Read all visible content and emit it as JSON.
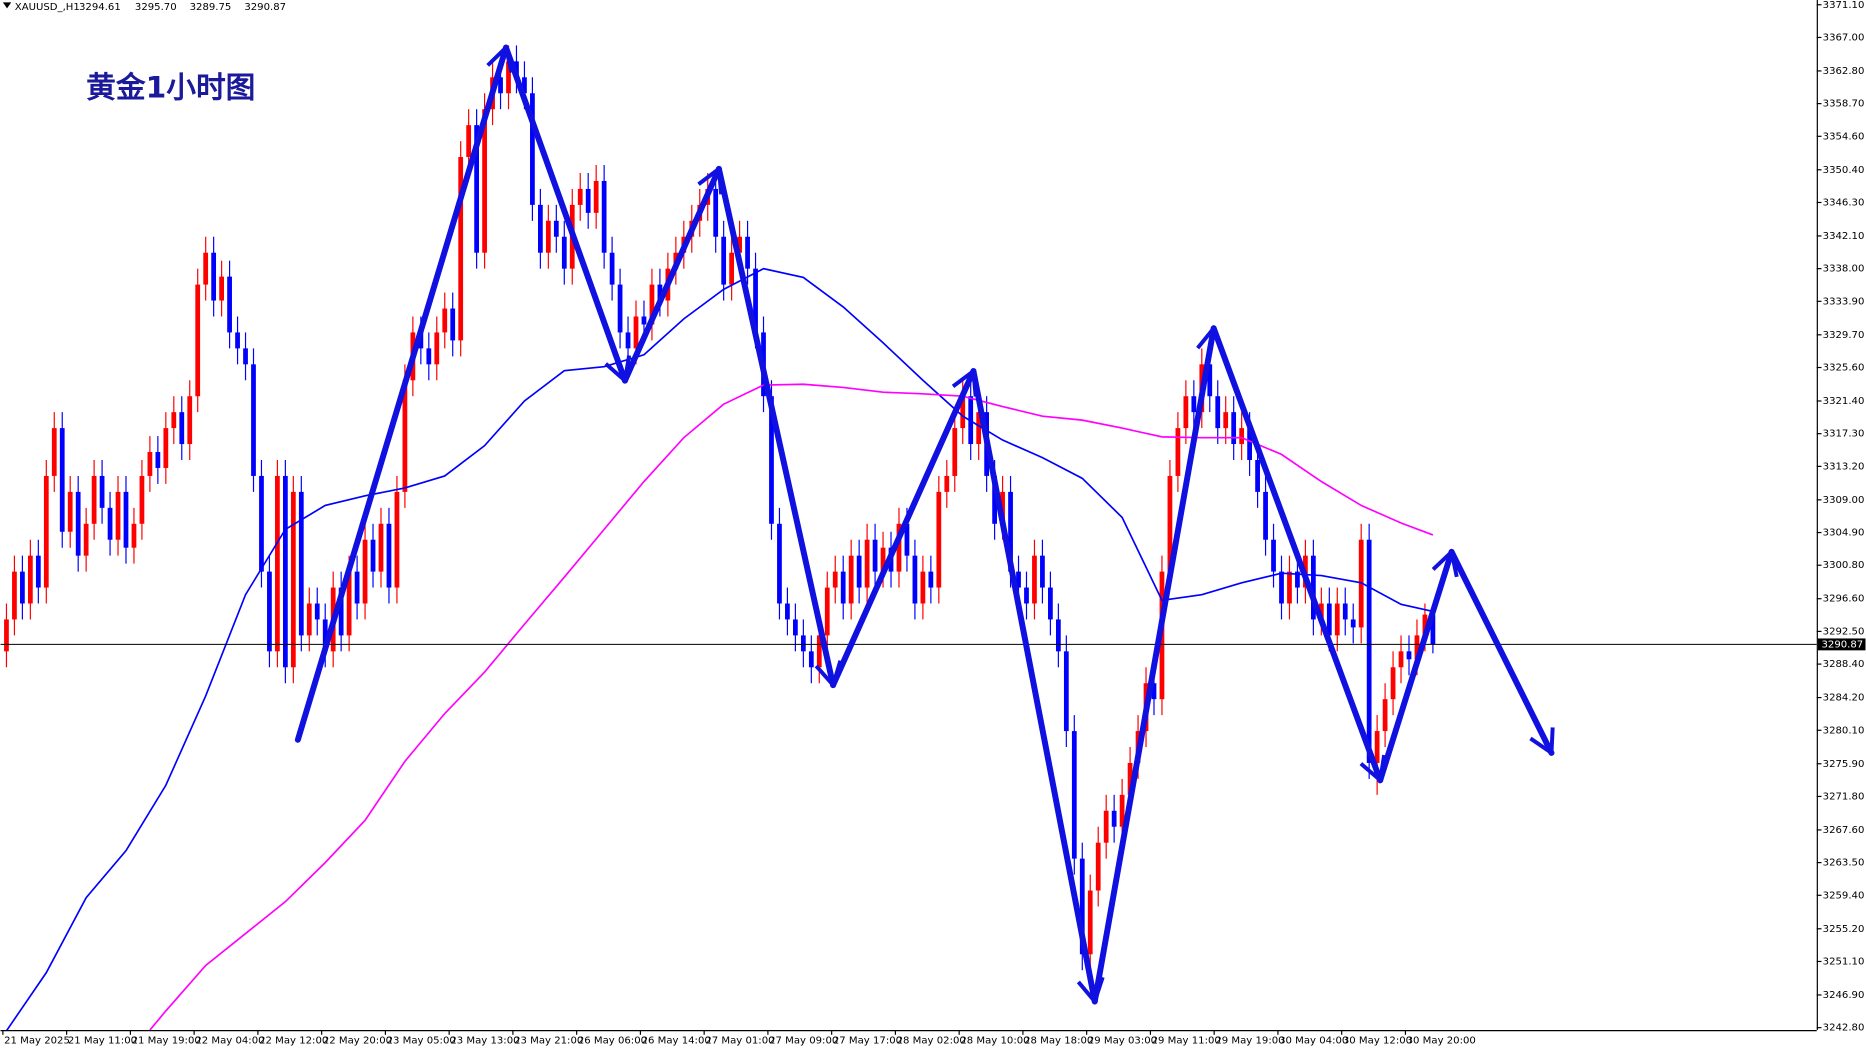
{
  "chart_data": {
    "type": "candlestick",
    "symbol": "XAUUSD_,H1",
    "last_ohlc_labels": [
      "3294.61",
      "3295.70",
      "3289.75",
      "3290.87"
    ],
    "title": "黄金1小时图",
    "up_color": "#ff0000",
    "down_color": "#0000ff",
    "ylim": [
      3242.8,
      3371.1
    ],
    "yticks": [
      {
        "value": 3371.1,
        "label": "3371.10"
      },
      {
        "value": 3367,
        "label": "3367.00"
      },
      {
        "value": 3362.8,
        "label": "3362.80"
      },
      {
        "value": 3358.7,
        "label": "3358.70"
      },
      {
        "value": 3354.6,
        "label": "3354.60"
      },
      {
        "value": 3350.4,
        "label": "3350.40"
      },
      {
        "value": 3346.3,
        "label": "3346.30"
      },
      {
        "value": 3342.1,
        "label": "3342.10"
      },
      {
        "value": 3338,
        "label": "3338.00"
      },
      {
        "value": 3333.9,
        "label": "3333.90"
      },
      {
        "value": 3329.7,
        "label": "3329.70"
      },
      {
        "value": 3325.6,
        "label": "3325.60"
      },
      {
        "value": 3321.4,
        "label": "3321.40"
      },
      {
        "value": 3317.3,
        "label": "3317.30"
      },
      {
        "value": 3313.2,
        "label": "3313.20"
      },
      {
        "value": 3309,
        "label": "3309.00"
      },
      {
        "value": 3304.9,
        "label": "3304.90"
      },
      {
        "value": 3300.8,
        "label": "3300.80"
      },
      {
        "value": 3296.6,
        "label": "3296.60"
      },
      {
        "value": 3292.5,
        "label": "3292.50"
      },
      {
        "value": 3288.4,
        "label": "3288.40"
      },
      {
        "value": 3284.2,
        "label": "3284.20"
      },
      {
        "value": 3280.1,
        "label": "3280.10"
      },
      {
        "value": 3275.9,
        "label": "3275.90"
      },
      {
        "value": 3271.8,
        "label": "3271.80"
      },
      {
        "value": 3267.6,
        "label": "3267.60"
      },
      {
        "value": 3263.5,
        "label": "3263.50"
      },
      {
        "value": 3259.4,
        "label": "3259.40"
      },
      {
        "value": 3255.2,
        "label": "3255.20"
      },
      {
        "value": 3251.1,
        "label": "3251.10"
      },
      {
        "value": 3246.9,
        "label": "3246.90"
      },
      {
        "value": 3242.8,
        "label": "3242.80"
      }
    ],
    "xticks": [
      {
        "value": 0,
        "label": "21 May 2025"
      },
      {
        "value": 8,
        "label": "21 May 11:00"
      },
      {
        "value": 16,
        "label": "21 May 19:00"
      },
      {
        "value": 24,
        "label": "22 May 04:00"
      },
      {
        "value": 32,
        "label": "22 May 12:00"
      },
      {
        "value": 40,
        "label": "22 May 20:00"
      },
      {
        "value": 48,
        "label": "23 May 05:00"
      },
      {
        "value": 56,
        "label": "23 May 13:00"
      },
      {
        "value": 64,
        "label": "23 May 21:00"
      },
      {
        "value": 72,
        "label": "26 May 06:00"
      },
      {
        "value": 80,
        "label": "26 May 14:00"
      },
      {
        "value": 88,
        "label": "27 May 01:00"
      },
      {
        "value": 96,
        "label": "27 May 09:00"
      },
      {
        "value": 104,
        "label": "27 May 17:00"
      },
      {
        "value": 112,
        "label": "28 May 02:00"
      },
      {
        "value": 120,
        "label": "28 May 10:00"
      },
      {
        "value": 128,
        "label": "28 May 18:00"
      },
      {
        "value": 136,
        "label": "29 May 03:00"
      },
      {
        "value": 144,
        "label": "29 May 11:00"
      },
      {
        "value": 152,
        "label": "29 May 19:00"
      },
      {
        "value": 160,
        "label": "30 May 04:00"
      },
      {
        "value": 168,
        "label": "30 May 12:00"
      },
      {
        "value": 176,
        "label": "30 May 20:00"
      }
    ],
    "open": [
      3290,
      3294,
      3300,
      3296,
      3302,
      3298,
      3312,
      3318,
      3305,
      3310,
      3302,
      3306,
      3312,
      3308,
      3304,
      3310,
      3303,
      3306,
      3312,
      3315,
      3313,
      3318,
      3320,
      3316,
      3322,
      3336,
      3340,
      3334,
      3337,
      3330,
      3328,
      3326,
      3312,
      3300,
      3290,
      3312,
      3288,
      3310,
      3292,
      3296,
      3294,
      3290,
      3298,
      3292,
      3300,
      3296,
      3304,
      3300,
      3306,
      3298,
      3310,
      3324,
      3330,
      3328,
      3326,
      3330,
      3333,
      3329,
      3352,
      3356,
      3340,
      3358,
      3362,
      3360,
      3364,
      3362,
      3360,
      3346,
      3340,
      3344,
      3342,
      3338,
      3346,
      3348,
      3345,
      3349,
      3340,
      3336,
      3330,
      3328,
      3332,
      3331,
      3336,
      3334,
      3338,
      3340,
      3342,
      3344,
      3346,
      3348,
      3342,
      3336,
      3340,
      3342,
      3338,
      3330,
      3322,
      3306,
      3296,
      3294,
      3292,
      3290,
      3288,
      3292,
      3298,
      3300,
      3296,
      3302,
      3298,
      3304,
      3300,
      3303,
      3300,
      3306,
      3302,
      3296,
      3300,
      3298,
      3310,
      3312,
      3318,
      3322,
      3316,
      3320,
      3312,
      3306,
      3310,
      3300,
      3298,
      3296,
      3302,
      3298,
      3294,
      3290,
      3280,
      3264,
      3252,
      3260,
      3266,
      3270,
      3268,
      3272,
      3276,
      3280,
      3286,
      3284,
      3300,
      3312,
      3318,
      3322,
      3320,
      3326,
      3322,
      3318,
      3320,
      3316,
      3318,
      3314,
      3310,
      3304,
      3300,
      3296,
      3300,
      3298,
      3302,
      3294,
      3296,
      3292,
      3296,
      3294,
      3293,
      3304,
      3276,
      3280,
      3284,
      3288,
      3290,
      3289,
      3292,
      3294.61
    ],
    "high": [
      3296,
      3302,
      3302,
      3304,
      3304,
      3314,
      3320,
      3320,
      3312,
      3312,
      3308,
      3314,
      3314,
      3310,
      3312,
      3312,
      3308,
      3314,
      3317,
      3317,
      3320,
      3322,
      3322,
      3324,
      3338,
      3342,
      3342,
      3339,
      3339,
      3332,
      3330,
      3328,
      3314,
      3302,
      3314,
      3314,
      3312,
      3312,
      3298,
      3298,
      3296,
      3300,
      3300,
      3302,
      3302,
      3306,
      3306,
      3308,
      3308,
      3312,
      3326,
      3332,
      3332,
      3330,
      3332,
      3335,
      3335,
      3354,
      3358,
      3358,
      3360,
      3364,
      3364,
      3366,
      3366,
      3364,
      3362,
      3348,
      3346,
      3346,
      3344,
      3348,
      3350,
      3350,
      3351,
      3351,
      3342,
      3338,
      3332,
      3334,
      3334,
      3338,
      3338,
      3340,
      3342,
      3344,
      3346,
      3348,
      3350,
      3350,
      3344,
      3342,
      3344,
      3344,
      3340,
      3332,
      3324,
      3308,
      3298,
      3296,
      3294,
      3292,
      3294,
      3300,
      3302,
      3302,
      3304,
      3304,
      3306,
      3306,
      3305,
      3305,
      3308,
      3308,
      3304,
      3302,
      3302,
      3312,
      3314,
      3320,
      3324,
      3324,
      3322,
      3322,
      3314,
      3312,
      3312,
      3302,
      3300,
      3304,
      3304,
      3300,
      3296,
      3292,
      3282,
      3266,
      3262,
      3268,
      3272,
      3272,
      3274,
      3278,
      3282,
      3288,
      3288,
      3302,
      3314,
      3320,
      3324,
      3324,
      3328,
      3328,
      3324,
      3322,
      3322,
      3320,
      3320,
      3316,
      3312,
      3306,
      3302,
      3302,
      3302,
      3304,
      3304,
      3298,
      3298,
      3298,
      3298,
      3296,
      3306,
      3306,
      3282,
      3286,
      3290,
      3292,
      3292,
      3294,
      3296,
      3295.7
    ],
    "low": [
      3288,
      3292,
      3294,
      3294,
      3296,
      3296,
      3310,
      3303,
      3303,
      3300,
      3300,
      3304,
      3306,
      3302,
      3302,
      3301,
      3301,
      3304,
      3310,
      3311,
      3311,
      3316,
      3314,
      3314,
      3320,
      3334,
      3332,
      3332,
      3328,
      3326,
      3324,
      3310,
      3298,
      3288,
      3288,
      3286,
      3286,
      3290,
      3290,
      3292,
      3288,
      3288,
      3290,
      3290,
      3294,
      3294,
      3298,
      3298,
      3296,
      3296,
      3308,
      3322,
      3326,
      3324,
      3324,
      3328,
      3327,
      3327,
      3350,
      3338,
      3338,
      3356,
      3358,
      3358,
      3360,
      3358,
      3344,
      3338,
      3338,
      3340,
      3336,
      3336,
      3344,
      3343,
      3343,
      3338,
      3334,
      3328,
      3326,
      3326,
      3329,
      3329,
      3332,
      3332,
      3336,
      3338,
      3340,
      3342,
      3344,
      3340,
      3334,
      3334,
      3338,
      3336,
      3328,
      3320,
      3304,
      3294,
      3292,
      3290,
      3288,
      3286,
      3286,
      3290,
      3296,
      3294,
      3294,
      3296,
      3296,
      3298,
      3298,
      3298,
      3298,
      3300,
      3294,
      3294,
      3296,
      3296,
      3308,
      3310,
      3316,
      3314,
      3314,
      3310,
      3304,
      3304,
      3298,
      3296,
      3294,
      3294,
      3296,
      3292,
      3288,
      3278,
      3262,
      3250,
      3250,
      3258,
      3264,
      3266,
      3266,
      3270,
      3274,
      3278,
      3282,
      3282,
      3298,
      3310,
      3316,
      3318,
      3318,
      3320,
      3316,
      3316,
      3314,
      3314,
      3312,
      3308,
      3302,
      3298,
      3294,
      3294,
      3296,
      3296,
      3292,
      3292,
      3290,
      3290,
      3292,
      3291,
      3291,
      3274,
      3272,
      3278,
      3282,
      3286,
      3287,
      3287,
      3290,
      3289.75
    ],
    "close": [
      3294,
      3300,
      3296,
      3302,
      3298,
      3312,
      3318,
      3305,
      3310,
      3302,
      3306,
      3312,
      3308,
      3304,
      3310,
      3303,
      3306,
      3312,
      3315,
      3313,
      3318,
      3320,
      3316,
      3322,
      3336,
      3340,
      3334,
      3337,
      3330,
      3328,
      3326,
      3312,
      3300,
      3290,
      3312,
      3288,
      3310,
      3292,
      3296,
      3294,
      3290,
      3298,
      3292,
      3300,
      3296,
      3304,
      3300,
      3306,
      3298,
      3310,
      3324,
      3330,
      3328,
      3326,
      3330,
      3333,
      3329,
      3352,
      3356,
      3340,
      3358,
      3362,
      3360,
      3364,
      3362,
      3360,
      3346,
      3340,
      3344,
      3342,
      3338,
      3346,
      3348,
      3345,
      3349,
      3340,
      3336,
      3330,
      3328,
      3332,
      3331,
      3336,
      3334,
      3338,
      3340,
      3342,
      3344,
      3346,
      3348,
      3342,
      3336,
      3340,
      3342,
      3338,
      3330,
      3322,
      3306,
      3296,
      3294,
      3292,
      3290,
      3288,
      3292,
      3298,
      3300,
      3296,
      3302,
      3298,
      3304,
      3300,
      3303,
      3300,
      3306,
      3302,
      3296,
      3300,
      3298,
      3310,
      3312,
      3318,
      3322,
      3316,
      3320,
      3312,
      3306,
      3310,
      3300,
      3298,
      3296,
      3302,
      3298,
      3294,
      3290,
      3280,
      3264,
      3252,
      3260,
      3266,
      3270,
      3268,
      3272,
      3276,
      3280,
      3286,
      3284,
      3300,
      3312,
      3318,
      3322,
      3320,
      3326,
      3322,
      3318,
      3320,
      3316,
      3318,
      3314,
      3310,
      3304,
      3300,
      3296,
      3300,
      3298,
      3302,
      3294,
      3296,
      3292,
      3296,
      3294,
      3293,
      3304,
      3276,
      3280,
      3284,
      3288,
      3290,
      3289,
      3292,
      3294.61,
      3290.87
    ],
    "series": [
      {
        "color": "#0000ff",
        "x": [
          0,
          5,
          10,
          15,
          20,
          25,
          30,
          35,
          40,
          45,
          50,
          55,
          60,
          65,
          70,
          75,
          80,
          85,
          90,
          95,
          100,
          105,
          110,
          115,
          120,
          125,
          130,
          135,
          140,
          145,
          150,
          155,
          160,
          165,
          170,
          175,
          179
        ],
        "values": [
          3242.4,
          3249.7,
          3259.1,
          3265.0,
          3273.2,
          3284.4,
          3297.1,
          3305.3,
          3308.3,
          3309.5,
          3310.5,
          3312.0,
          3315.8,
          3321.4,
          3325.2,
          3325.7,
          3327.2,
          3331.7,
          3335.4,
          3338.0,
          3336.9,
          3333.2,
          3328.7,
          3324.0,
          3319.5,
          3316.5,
          3314.3,
          3311.7,
          3306.8,
          3296.4,
          3297.1,
          3298.6,
          3299.8,
          3299.5,
          3298.6,
          3295.9,
          3295.0
        ]
      },
      {
        "color": "#ff00ff",
        "x": [
          18,
          20,
          25,
          30,
          35,
          40,
          45,
          50,
          55,
          60,
          65,
          70,
          75,
          80,
          85,
          90,
          95,
          100,
          105,
          110,
          115,
          120,
          125,
          130,
          135,
          140,
          145,
          150,
          155,
          160,
          165,
          170,
          175,
          179
        ],
        "values": [
          3242.5,
          3244.9,
          3250.6,
          3254.6,
          3258.6,
          3263.5,
          3268.8,
          3276.2,
          3282.2,
          3287.4,
          3293.4,
          3299.3,
          3305.3,
          3311.3,
          3316.8,
          3321.0,
          3323.4,
          3323.5,
          3323.1,
          3322.5,
          3322.3,
          3322.0,
          3320.7,
          3319.5,
          3319.0,
          3318.0,
          3316.9,
          3316.8,
          3316.8,
          3314.7,
          3311.3,
          3308.3,
          3306.1,
          3304.6
        ]
      }
    ]
  }
}
